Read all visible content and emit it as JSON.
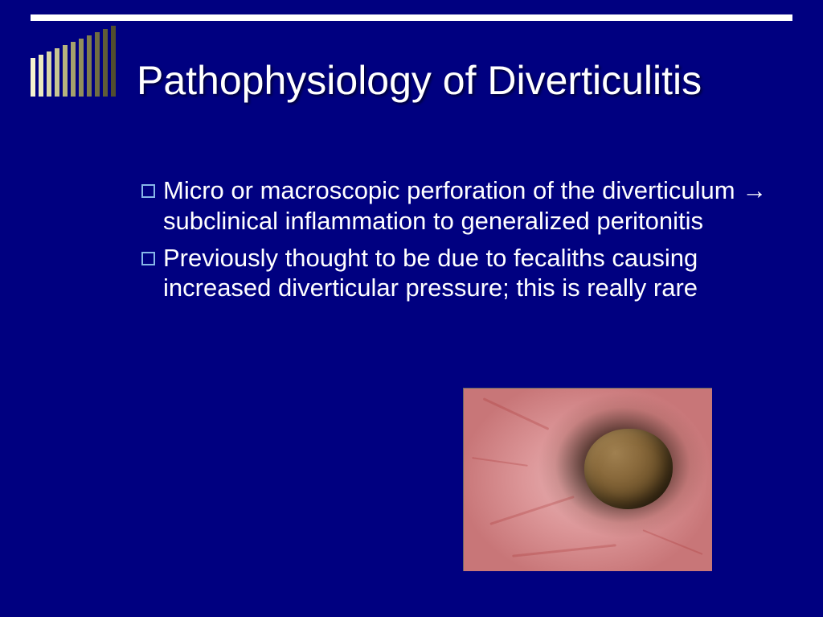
{
  "slide": {
    "background_color": "#000080",
    "accent_bar_color": "#ffffff",
    "stripe_colors": [
      "#f5f3d0",
      "#eceac0",
      "#d9d7a8",
      "#c8c592",
      "#b6b37e",
      "#a4a16c",
      "#928f5c",
      "#807d4e",
      "#706d42",
      "#605d38",
      "#514e2e"
    ],
    "stripe_heights": [
      48,
      52,
      56,
      60,
      64,
      68,
      72,
      76,
      80,
      84,
      88
    ],
    "title": "Pathophysiology of Diverticulitis",
    "title_color": "#ffffff",
    "title_fontsize": 50,
    "bullet_marker_color": "#87b7e8",
    "body_color": "#ffffff",
    "body_fontsize": 31,
    "bullets": [
      "Micro or macroscopic perforation of the diverticulum → subclinical inflammation to generalized peritonitis",
      "Previously thought to be due to fecaliths causing increased diverticular pressure; this is really rare"
    ],
    "image": {
      "description": "endoscopy-fecalith-in-diverticulum",
      "tissue_base_color": "#e0a0a2",
      "stone_color": "#7a5a30",
      "cavity_shadow": "#1a0c06"
    }
  }
}
